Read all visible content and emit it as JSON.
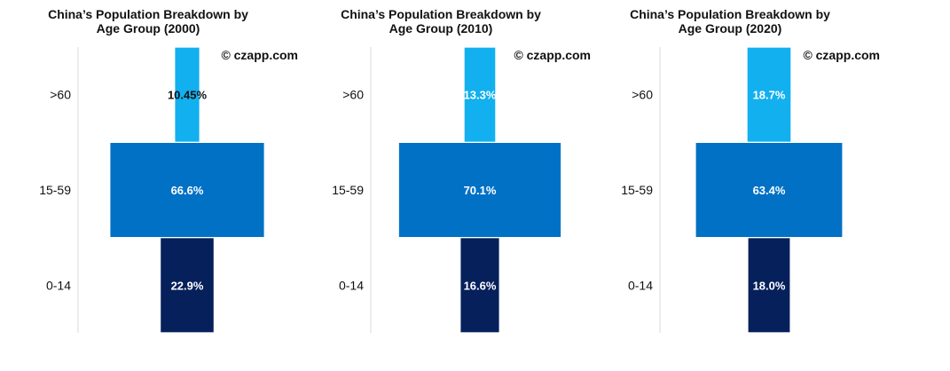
{
  "colors": {
    "above_60": "#12b0ee",
    "age_15_59": "#0071c5",
    "age_0_14": "#06205c",
    "axis": "#d9d9d9",
    "text_dark": "#111111",
    "text_light": "#ffffff"
  },
  "watermark": "© czapp.com",
  "chart_data": [
    {
      "type": "bar",
      "orientation": "horizontal-centered",
      "title_lines": [
        "China’s Population Breakdown by",
        "Age Group (2000)"
      ],
      "categories": [
        ">60",
        "15-59",
        "0-14"
      ],
      "values": [
        10.45,
        66.6,
        22.9
      ],
      "value_labels": [
        "10.45%",
        "66.6%",
        "22.9%"
      ],
      "unit": "%"
    },
    {
      "type": "bar",
      "orientation": "horizontal-centered",
      "title_lines": [
        "China’s Population Breakdown by",
        "Age Group (2010)"
      ],
      "categories": [
        ">60",
        "15-59",
        "0-14"
      ],
      "values": [
        13.3,
        70.1,
        16.6
      ],
      "value_labels": [
        "13.3%",
        "70.1%",
        "16.6%"
      ],
      "unit": "%"
    },
    {
      "type": "bar",
      "orientation": "horizontal-centered",
      "title_lines": [
        "China’s Population Breakdown by",
        "Age Group (2020)"
      ],
      "categories": [
        ">60",
        "15-59",
        "0-14"
      ],
      "values": [
        18.7,
        63.4,
        18.0
      ],
      "value_labels": [
        "18.7%",
        "63.4%",
        "18.0%"
      ],
      "unit": "%"
    }
  ]
}
